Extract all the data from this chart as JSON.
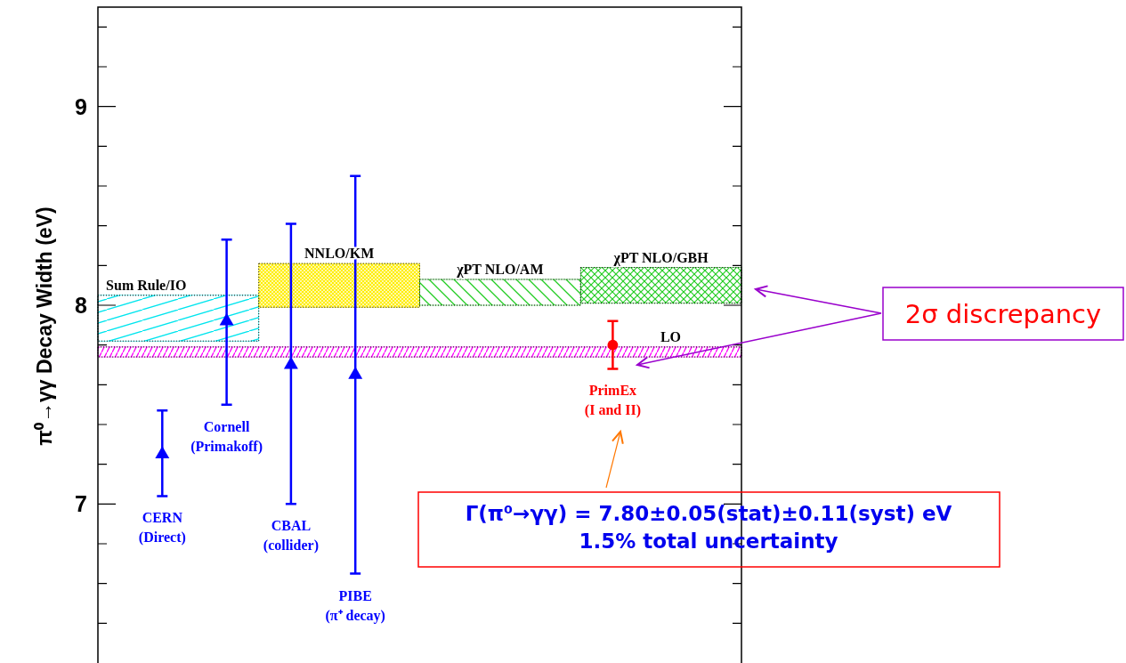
{
  "chart_data": {
    "type": "scatter",
    "ylabel": "π⁰→γγ  Decay Width (eV)",
    "categories": [
      null,
      null,
      null,
      null,
      null,
      null,
      null,
      null,
      null,
      null,
      null
    ],
    "ylim": [
      6.2,
      9.5
    ],
    "tick_labels": "y",
    "yticks": [
      {
        "value": 6.4,
        "label": null
      },
      {
        "value": 6.6,
        "label": null
      },
      {
        "value": 6.8,
        "label": null
      },
      7,
      {
        "value": 7.2,
        "label": null
      },
      {
        "value": 7.4,
        "label": null
      },
      {
        "value": 7.6,
        "label": null
      },
      {
        "value": 7.8,
        "label": null
      },
      8,
      {
        "value": 8.2,
        "label": null
      },
      {
        "value": 8.4,
        "label": null
      },
      {
        "value": 8.6,
        "label": null
      },
      {
        "value": 8.8,
        "label": null
      },
      9,
      {
        "value": 9.2,
        "label": null
      },
      {
        "value": 9.4,
        "label": null
      }
    ],
    "series": [
      {
        "values": [
          null,
          7.25,
          7.92,
          7.7,
          7.65,
          null,
          null,
          null,
          null,
          null,
          null
        ],
        "errors": [
          null,
          [
            7.04,
            7.47
          ],
          [
            7.5,
            8.33
          ],
          [
            7.0,
            8.41
          ],
          [
            6.65,
            8.65
          ],
          null,
          null,
          null,
          null,
          null,
          null
        ],
        "color": "#0000ff",
        "marker": "triangle"
      },
      {
        "values": [
          null,
          null,
          null,
          null,
          null,
          null,
          null,
          null,
          7.8,
          null,
          null
        ],
        "errors": [
          null,
          null,
          null,
          null,
          null,
          null,
          null,
          null,
          [
            7.68,
            7.92
          ],
          null,
          null
        ],
        "color": "#ff0000",
        "marker": "circle"
      }
    ],
    "bands": [
      {
        "axis": "y",
        "from": 7.82,
        "to": 8.05,
        "label": "Sum Rule/IO",
        "color": "#00e5ee"
      },
      {
        "axis": "y",
        "from": 7.99,
        "to": 8.21,
        "label": "NNLO/KM",
        "color": "#ffee00"
      },
      {
        "axis": "y",
        "from": 8.0,
        "to": 8.13,
        "label": "χPT NLO/AM",
        "color": "#22cc22"
      },
      {
        "axis": "y",
        "from": 8.01,
        "to": 8.19,
        "label": "χPT NLO/GBH",
        "color": "#22cc22"
      },
      {
        "axis": "y",
        "from": 7.74,
        "to": 7.79,
        "label": "LO",
        "color": "#ff00ff"
      }
    ],
    "annotations": [
      {
        "text": "CERN\n(Direct)",
        "y": 7.04
      },
      {
        "text": "Cornell\n(Primakoff)",
        "y": 7.5
      },
      {
        "text": "CBAL\n(collider)",
        "y": 7.0
      },
      {
        "text": "PIBE\n(π⁺ decay)",
        "y": 6.65
      },
      {
        "text": "PrimEx\n(I and II)",
        "y": 7.68
      },
      "2σ discrepancy",
      "Γ(π⁰→γγ) = 7.80±0.05(stat)±0.11(syst) eV\n1.5% total uncertainty"
    ]
  }
}
